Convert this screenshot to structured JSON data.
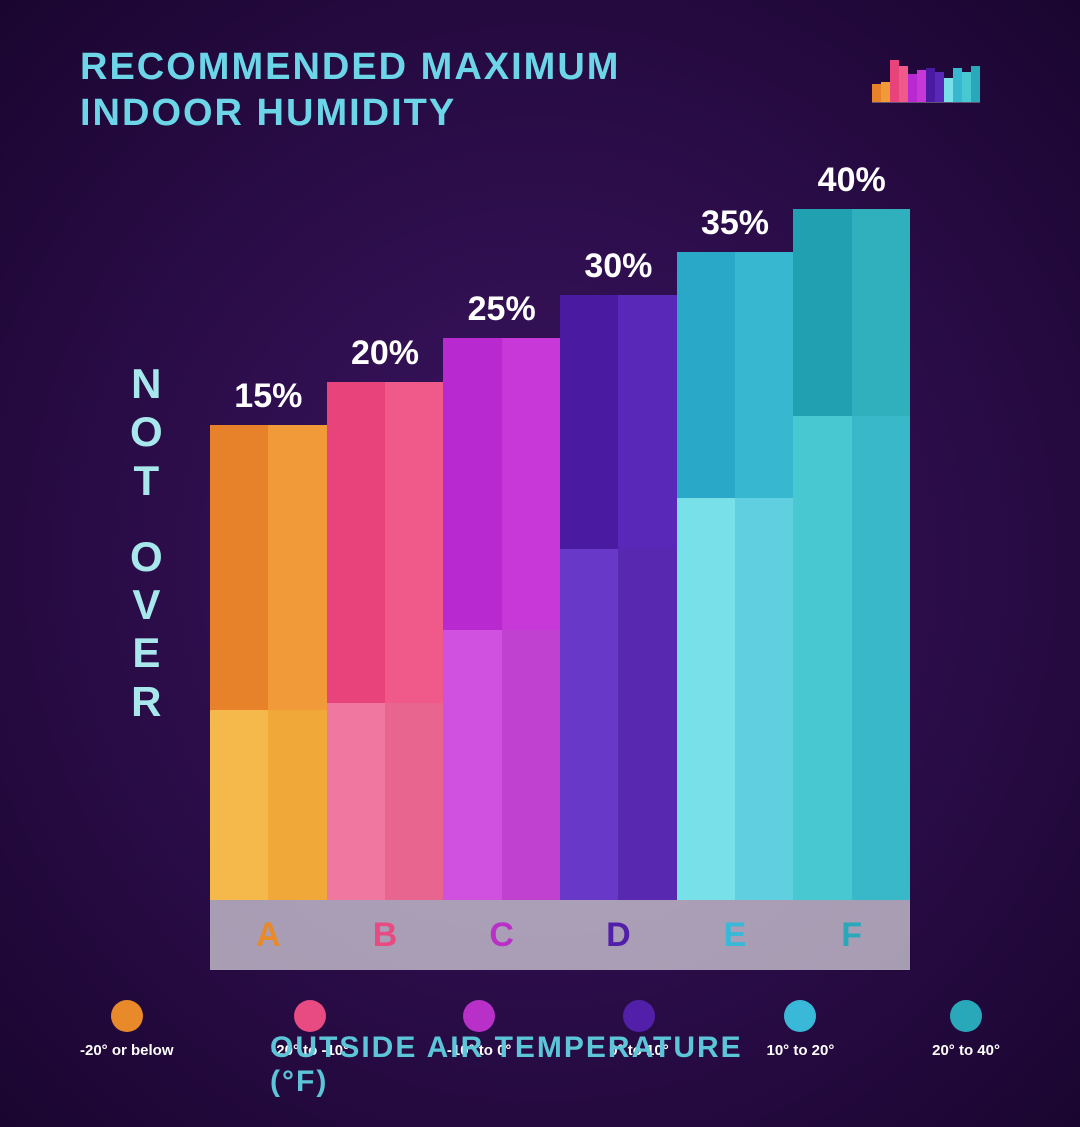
{
  "title": "RECOMMENDED MAXIMUM\nINDOOR HUMIDITY",
  "title_color": "#6dd5e8",
  "y_axis_label": "NOT OVER",
  "y_axis_color": "#a8e8ed",
  "x_axis_label": "OUTSIDE AIR TEMPERATURE (°F)",
  "x_axis_color": "#5cc5d8",
  "chart": {
    "type": "bar",
    "max_value": 40,
    "bars": [
      {
        "key": "A",
        "value": 15,
        "label": "15%",
        "height_pct": 66,
        "overlay_pct": 40,
        "color_top_left": "#e8822a",
        "color_top_right": "#f09a3a",
        "color_bottom_left": "#f5b84a",
        "color_bottom_right": "#f0a838",
        "cat_color": "#e88a2a"
      },
      {
        "key": "B",
        "value": 20,
        "label": "20%",
        "height_pct": 72,
        "overlay_pct": 38,
        "color_top_left": "#e8437a",
        "color_top_right": "#f05a8a",
        "color_bottom_left": "#f078a0",
        "color_bottom_right": "#e86590",
        "cat_color": "#e84a82"
      },
      {
        "key": "C",
        "value": 25,
        "label": "25%",
        "height_pct": 78,
        "overlay_pct": 48,
        "color_top_left": "#b82ad0",
        "color_top_right": "#c838d8",
        "color_bottom_left": "#d050e0",
        "color_bottom_right": "#c040d0",
        "cat_color": "#b830c8"
      },
      {
        "key": "D",
        "value": 30,
        "label": "30%",
        "height_pct": 84,
        "overlay_pct": 58,
        "color_top_left": "#4a1aa0",
        "color_top_right": "#5a28b8",
        "color_bottom_left": "#6838c8",
        "color_bottom_right": "#5828b0",
        "cat_color": "#5220a8"
      },
      {
        "key": "E",
        "value": 35,
        "label": "35%",
        "height_pct": 90,
        "overlay_pct": 62,
        "color_top_left": "#2aa8c8",
        "color_top_right": "#38b8d0",
        "color_bottom_left": "#78e0e8",
        "color_bottom_right": "#60d0e0",
        "cat_color": "#3ab8d8"
      },
      {
        "key": "F",
        "value": 40,
        "label": "40%",
        "height_pct": 96,
        "overlay_pct": 70,
        "color_top_left": "#20a0b0",
        "color_top_right": "#30b0bd",
        "color_bottom_left": "#48c8d0",
        "color_bottom_right": "#38b8c8",
        "cat_color": "#28a8b8"
      }
    ]
  },
  "legend": [
    {
      "label": "-20° or below",
      "color": "#e88a2a"
    },
    {
      "label": "-20° to -10°",
      "color": "#e84a82"
    },
    {
      "label": "-10° to 0°",
      "color": "#b830c8"
    },
    {
      "label": "0° to 10°",
      "color": "#5220a8"
    },
    {
      "label": "10° to 20°",
      "color": "#3ab8d8"
    },
    {
      "label": "20° to 40°",
      "color": "#28a8b8"
    }
  ],
  "mini_chart": {
    "bars": [
      {
        "h1": 18,
        "h2": 20,
        "c1": "#e8822a",
        "c2": "#f09a3a"
      },
      {
        "h1": 42,
        "h2": 36,
        "c1": "#e8437a",
        "c2": "#f05a8a"
      },
      {
        "h1": 28,
        "h2": 32,
        "c1": "#b82ad0",
        "c2": "#c838d8"
      },
      {
        "h1": 34,
        "h2": 30,
        "c1": "#4a1aa0",
        "c2": "#5a28b8"
      },
      {
        "h1": 24,
        "h2": 34,
        "c1": "#78e0e8",
        "c2": "#38b8d0"
      },
      {
        "h1": 30,
        "h2": 36,
        "c1": "#48c8d0",
        "c2": "#28a8b8"
      }
    ]
  }
}
